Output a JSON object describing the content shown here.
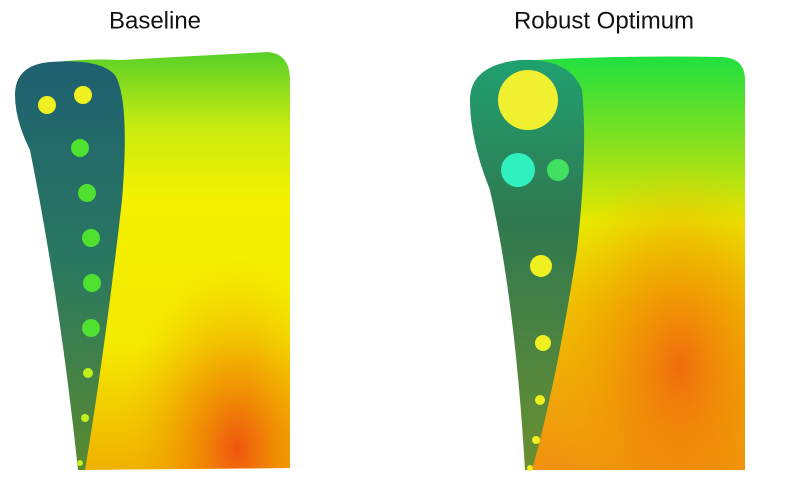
{
  "panels": [
    {
      "title": "Baseline"
    },
    {
      "title": "Robust Optimum"
    }
  ]
}
